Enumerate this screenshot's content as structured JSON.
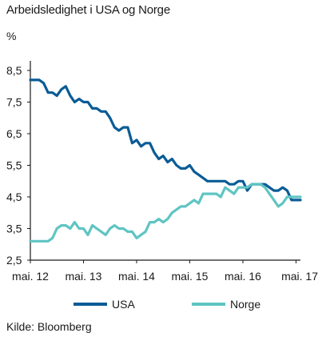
{
  "title": "Arbeidsledighet i USA og Norge",
  "source": "Kilde: Bloomberg",
  "chart_data": {
    "type": "line",
    "ylabel": "%",
    "ylim": [
      2.5,
      8.5
    ],
    "yticks": [
      "8,5",
      "7,5",
      "6,5",
      "5,5",
      "4,5",
      "3,5",
      "2,5"
    ],
    "ytick_values": [
      8.5,
      7.5,
      6.5,
      5.5,
      4.5,
      3.5,
      2.5
    ],
    "xticks": [
      "mai. 12",
      "mai. 13",
      "mai. 14",
      "mai. 15",
      "mai. 16",
      "mai. 17"
    ],
    "x_start": "2012-05",
    "grid": false,
    "legend": "bottom",
    "series": [
      {
        "name": "USA",
        "color": "#0a5c96",
        "values": [
          8.2,
          8.2,
          8.2,
          8.1,
          7.8,
          7.8,
          7.7,
          7.9,
          8.0,
          7.7,
          7.5,
          7.6,
          7.5,
          7.5,
          7.3,
          7.3,
          7.2,
          7.2,
          7.0,
          6.7,
          6.6,
          6.7,
          6.7,
          6.2,
          6.3,
          6.1,
          6.2,
          6.2,
          5.9,
          5.7,
          5.8,
          5.6,
          5.7,
          5.5,
          5.4,
          5.4,
          5.5,
          5.3,
          5.2,
          5.1,
          5.0,
          5.0,
          5.0,
          5.0,
          5.0,
          4.9,
          4.9,
          5.0,
          5.0,
          4.7,
          4.9,
          4.9,
          4.9,
          4.9,
          4.8,
          4.7,
          4.7,
          4.8,
          4.7,
          4.4,
          4.4,
          4.4
        ]
      },
      {
        "name": "Norge",
        "color": "#5fc5c3",
        "values": [
          3.1,
          3.1,
          3.1,
          3.1,
          3.1,
          3.2,
          3.5,
          3.6,
          3.6,
          3.5,
          3.7,
          3.5,
          3.5,
          3.3,
          3.6,
          3.5,
          3.4,
          3.3,
          3.5,
          3.6,
          3.5,
          3.5,
          3.4,
          3.4,
          3.2,
          3.3,
          3.4,
          3.7,
          3.7,
          3.8,
          3.7,
          3.8,
          4.0,
          4.1,
          4.2,
          4.2,
          4.3,
          4.4,
          4.3,
          4.6,
          4.6,
          4.6,
          4.6,
          4.5,
          4.8,
          4.7,
          4.6,
          4.8,
          4.8,
          4.8,
          4.9,
          4.9,
          4.9,
          4.8,
          4.6,
          4.4,
          4.2,
          4.3,
          4.5,
          4.5,
          4.5,
          4.5
        ]
      }
    ]
  }
}
